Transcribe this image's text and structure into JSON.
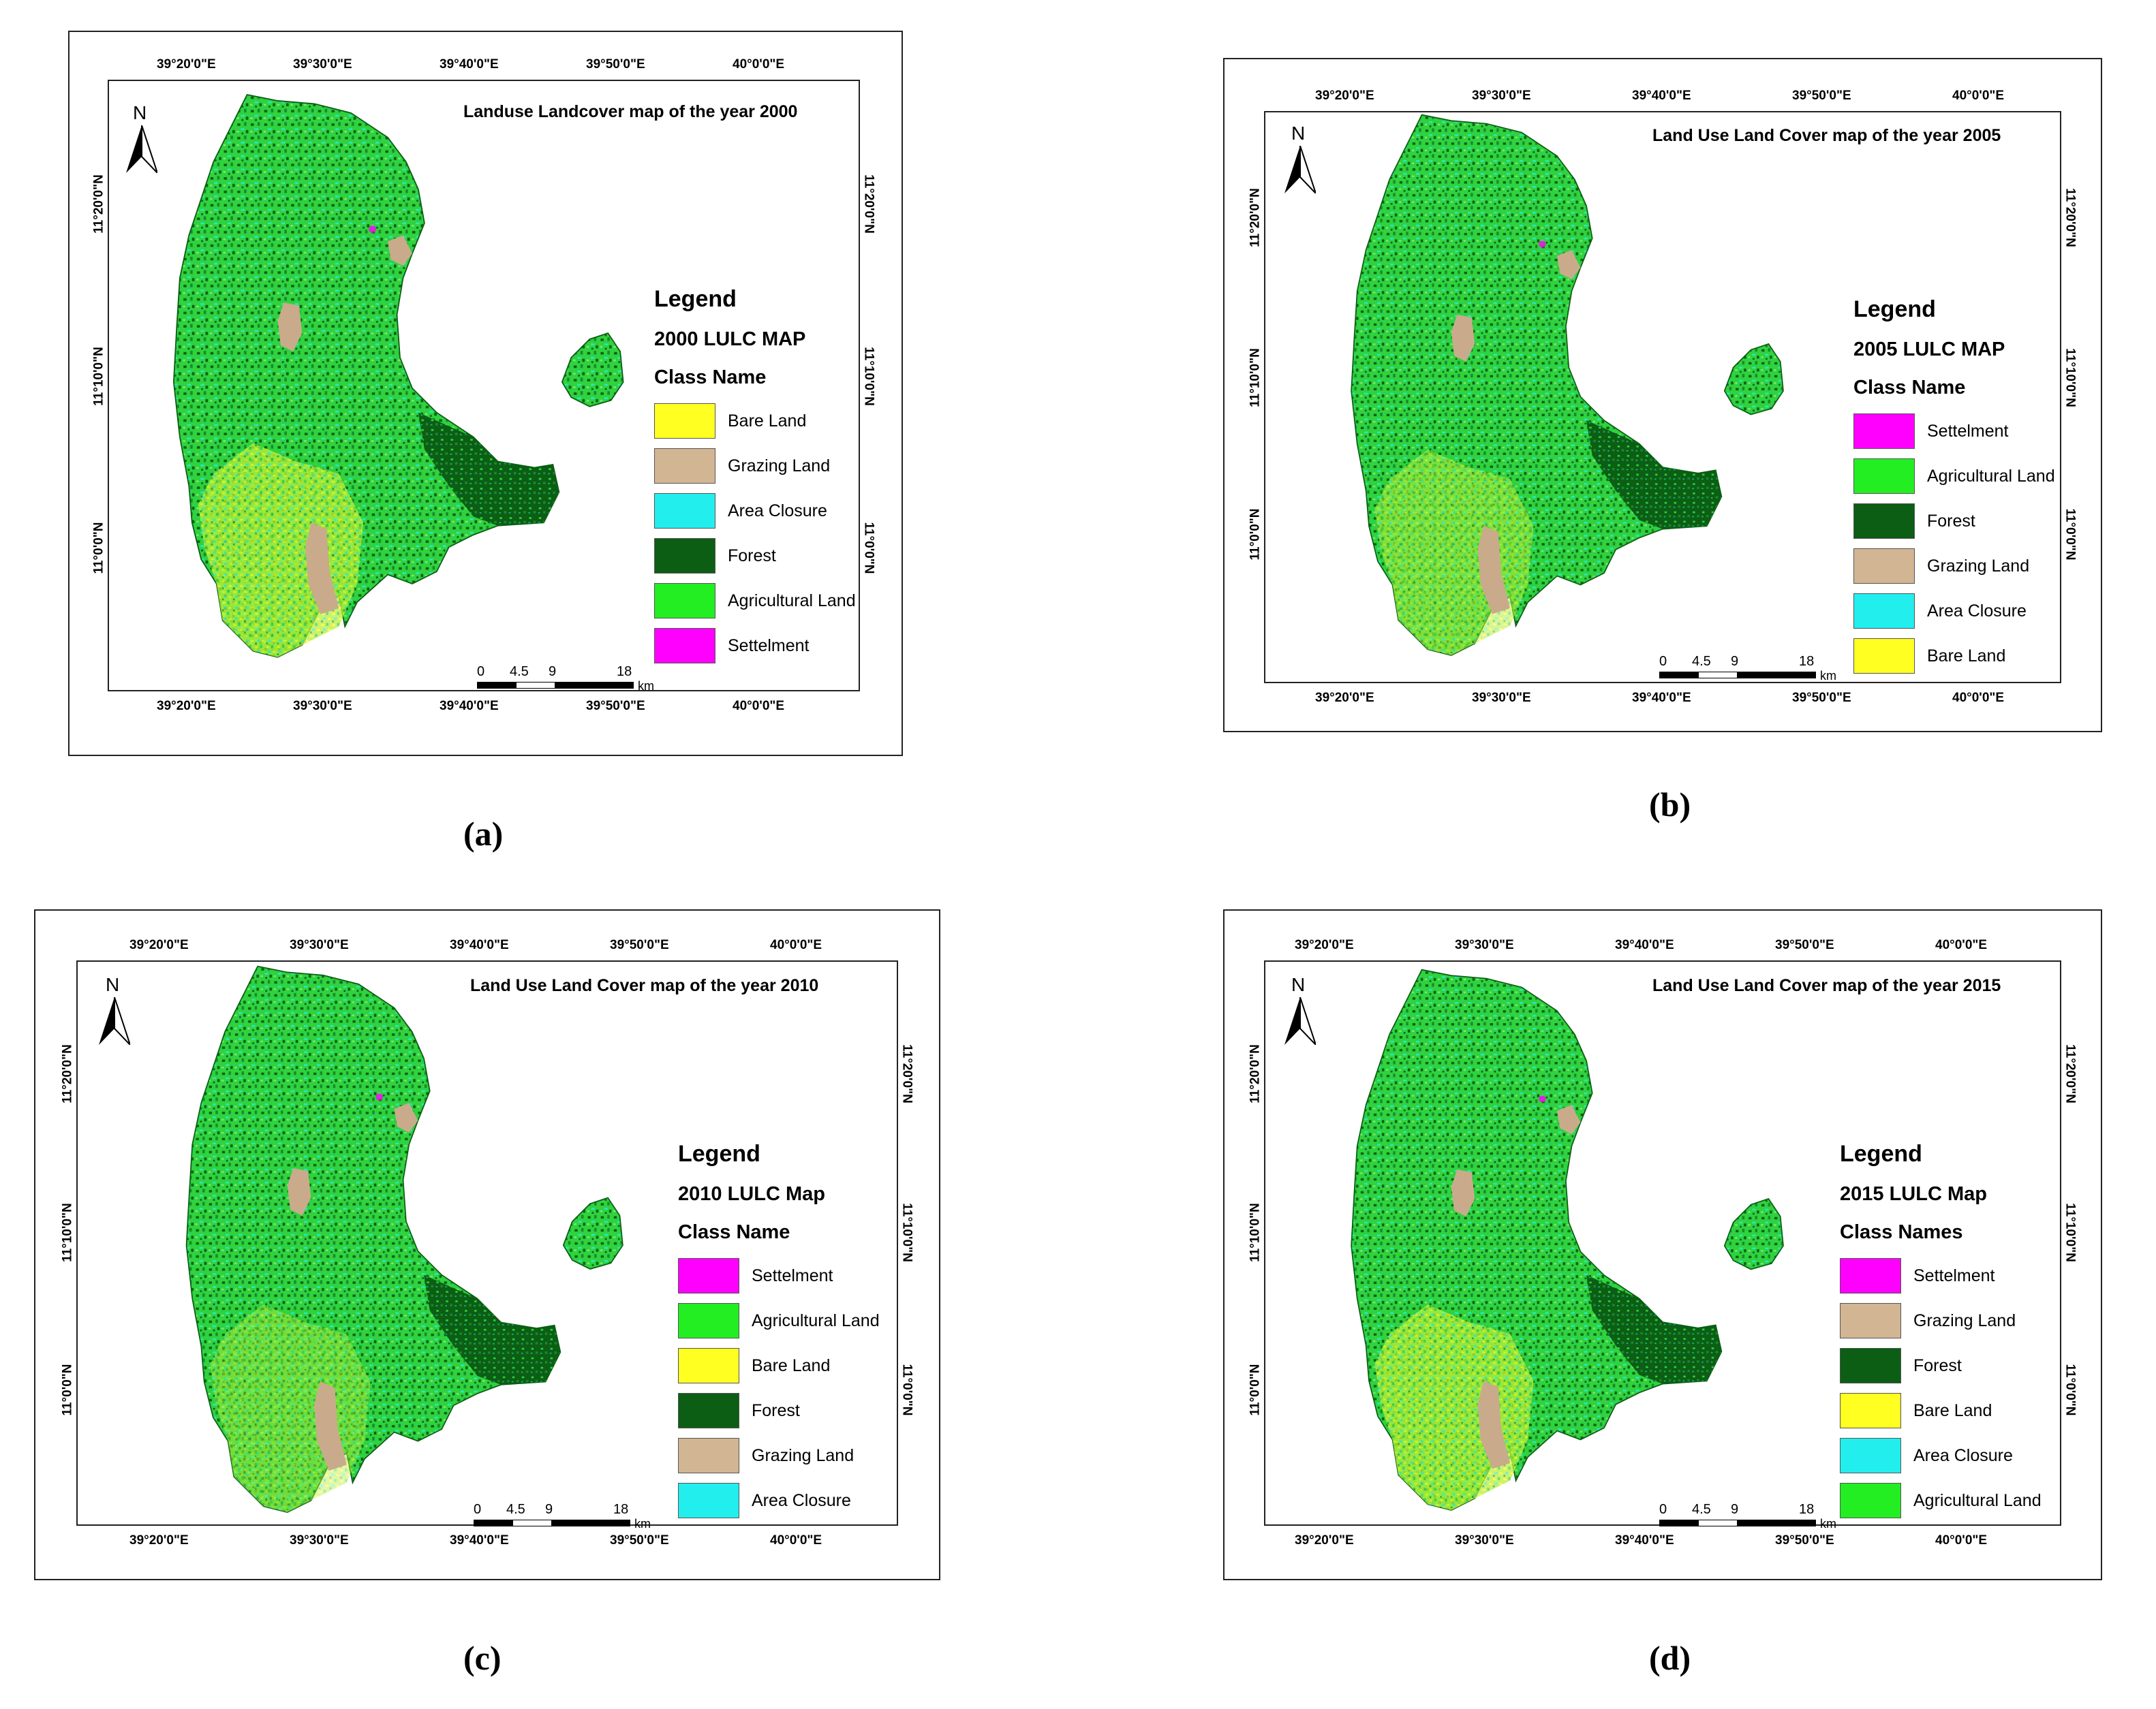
{
  "classes": {
    "settlement": "#ff00ff",
    "agricultural": "#22ee22",
    "forest": "#0b5e14",
    "grazing": "#d2b593",
    "area_closure": "#22eeee",
    "bare": "#ffff22"
  },
  "panels": [
    {
      "caption": "(a)",
      "title": "Landuse Landcover map of the year 2000",
      "legend_heading": "Legend",
      "legend_subtitle": "2000 LULC MAP",
      "class_heading": "Class Name",
      "legend": [
        {
          "label": "Bare Land",
          "color": "#ffff22"
        },
        {
          "label": "Grazing Land",
          "color": "#d2b593"
        },
        {
          "label": "Area Closure",
          "color": "#22eeee"
        },
        {
          "label": "Forest",
          "color": "#0b5e14"
        },
        {
          "label": "Agricultural Land",
          "color": "#22ee22"
        },
        {
          "label": "Settelment",
          "color": "#ff00ff"
        }
      ],
      "lon_ticks": [
        "39°20'0\"E",
        "39°30'0\"E",
        "39°40'0\"E",
        "39°50'0\"E",
        "40°0'0\"E"
      ],
      "lat_ticks": [
        "11°20'0\"N",
        "11°10'0\"N",
        "11°0'0\"N"
      ],
      "north": "N",
      "scale_labels": [
        "0",
        "4.5",
        "9",
        "18"
      ],
      "scale_unit": "km"
    },
    {
      "caption": "(b)",
      "title": "Land Use Land Cover map of the year 2005",
      "legend_heading": "Legend",
      "legend_subtitle": "2005 LULC MAP",
      "class_heading": "Class Name",
      "legend": [
        {
          "label": "Settelment",
          "color": "#ff00ff"
        },
        {
          "label": "Agricultural Land",
          "color": "#22ee22"
        },
        {
          "label": "Forest",
          "color": "#0b5e14"
        },
        {
          "label": "Grazing Land",
          "color": "#d2b593"
        },
        {
          "label": "Area Closure",
          "color": "#22eeee"
        },
        {
          "label": "Bare Land",
          "color": "#ffff22"
        }
      ],
      "lon_ticks": [
        "39°20'0\"E",
        "39°30'0\"E",
        "39°40'0\"E",
        "39°50'0\"E",
        "40°0'0\"E"
      ],
      "lat_ticks": [
        "11°20'0\"N",
        "11°10'0\"N",
        "11°0'0\"N"
      ],
      "north": "N",
      "scale_labels": [
        "0",
        "4.5",
        "9",
        "18"
      ],
      "scale_unit": "km"
    },
    {
      "caption": "(c)",
      "title": "Land Use Land Cover map of the year 2010",
      "legend_heading": "Legend",
      "legend_subtitle": "2010 LULC Map",
      "class_heading": "Class Name",
      "legend": [
        {
          "label": "Settelment",
          "color": "#ff00ff"
        },
        {
          "label": "Agricultural Land",
          "color": "#22ee22"
        },
        {
          "label": "Bare Land",
          "color": "#ffff22"
        },
        {
          "label": "Forest",
          "color": "#0b5e14"
        },
        {
          "label": "Grazing Land",
          "color": "#d2b593"
        },
        {
          "label": "Area Closure",
          "color": "#22eeee"
        }
      ],
      "lon_ticks": [
        "39°20'0\"E",
        "39°30'0\"E",
        "39°40'0\"E",
        "39°50'0\"E",
        "40°0'0\"E"
      ],
      "lat_ticks": [
        "11°20'0\"N",
        "11°10'0\"N",
        "11°0'0\"N"
      ],
      "north": "N",
      "scale_labels": [
        "0",
        "4.5",
        "9",
        "18"
      ],
      "scale_unit": "km"
    },
    {
      "caption": "(d)",
      "title": "Land Use Land Cover map of the year 2015",
      "legend_heading": "Legend",
      "legend_subtitle": "2015 LULC Map",
      "class_heading": "Class Names",
      "legend": [
        {
          "label": "Settelment",
          "color": "#ff00ff"
        },
        {
          "label": "Grazing Land",
          "color": "#d2b593"
        },
        {
          "label": "Forest",
          "color": "#0b5e14"
        },
        {
          "label": "Bare Land",
          "color": "#ffff22"
        },
        {
          "label": "Area Closure",
          "color": "#22eeee"
        },
        {
          "label": "Agricultural Land",
          "color": "#22ee22"
        }
      ],
      "lon_ticks": [
        "39°20'0\"E",
        "39°30'0\"E",
        "39°40'0\"E",
        "39°50'0\"E",
        "40°0'0\"E"
      ],
      "lat_ticks": [
        "11°20'0\"N",
        "11°10'0\"N",
        "11°0'0\"N"
      ],
      "north": "N",
      "scale_labels": [
        "0",
        "4.5",
        "9",
        "18"
      ],
      "scale_unit": "km"
    }
  ]
}
